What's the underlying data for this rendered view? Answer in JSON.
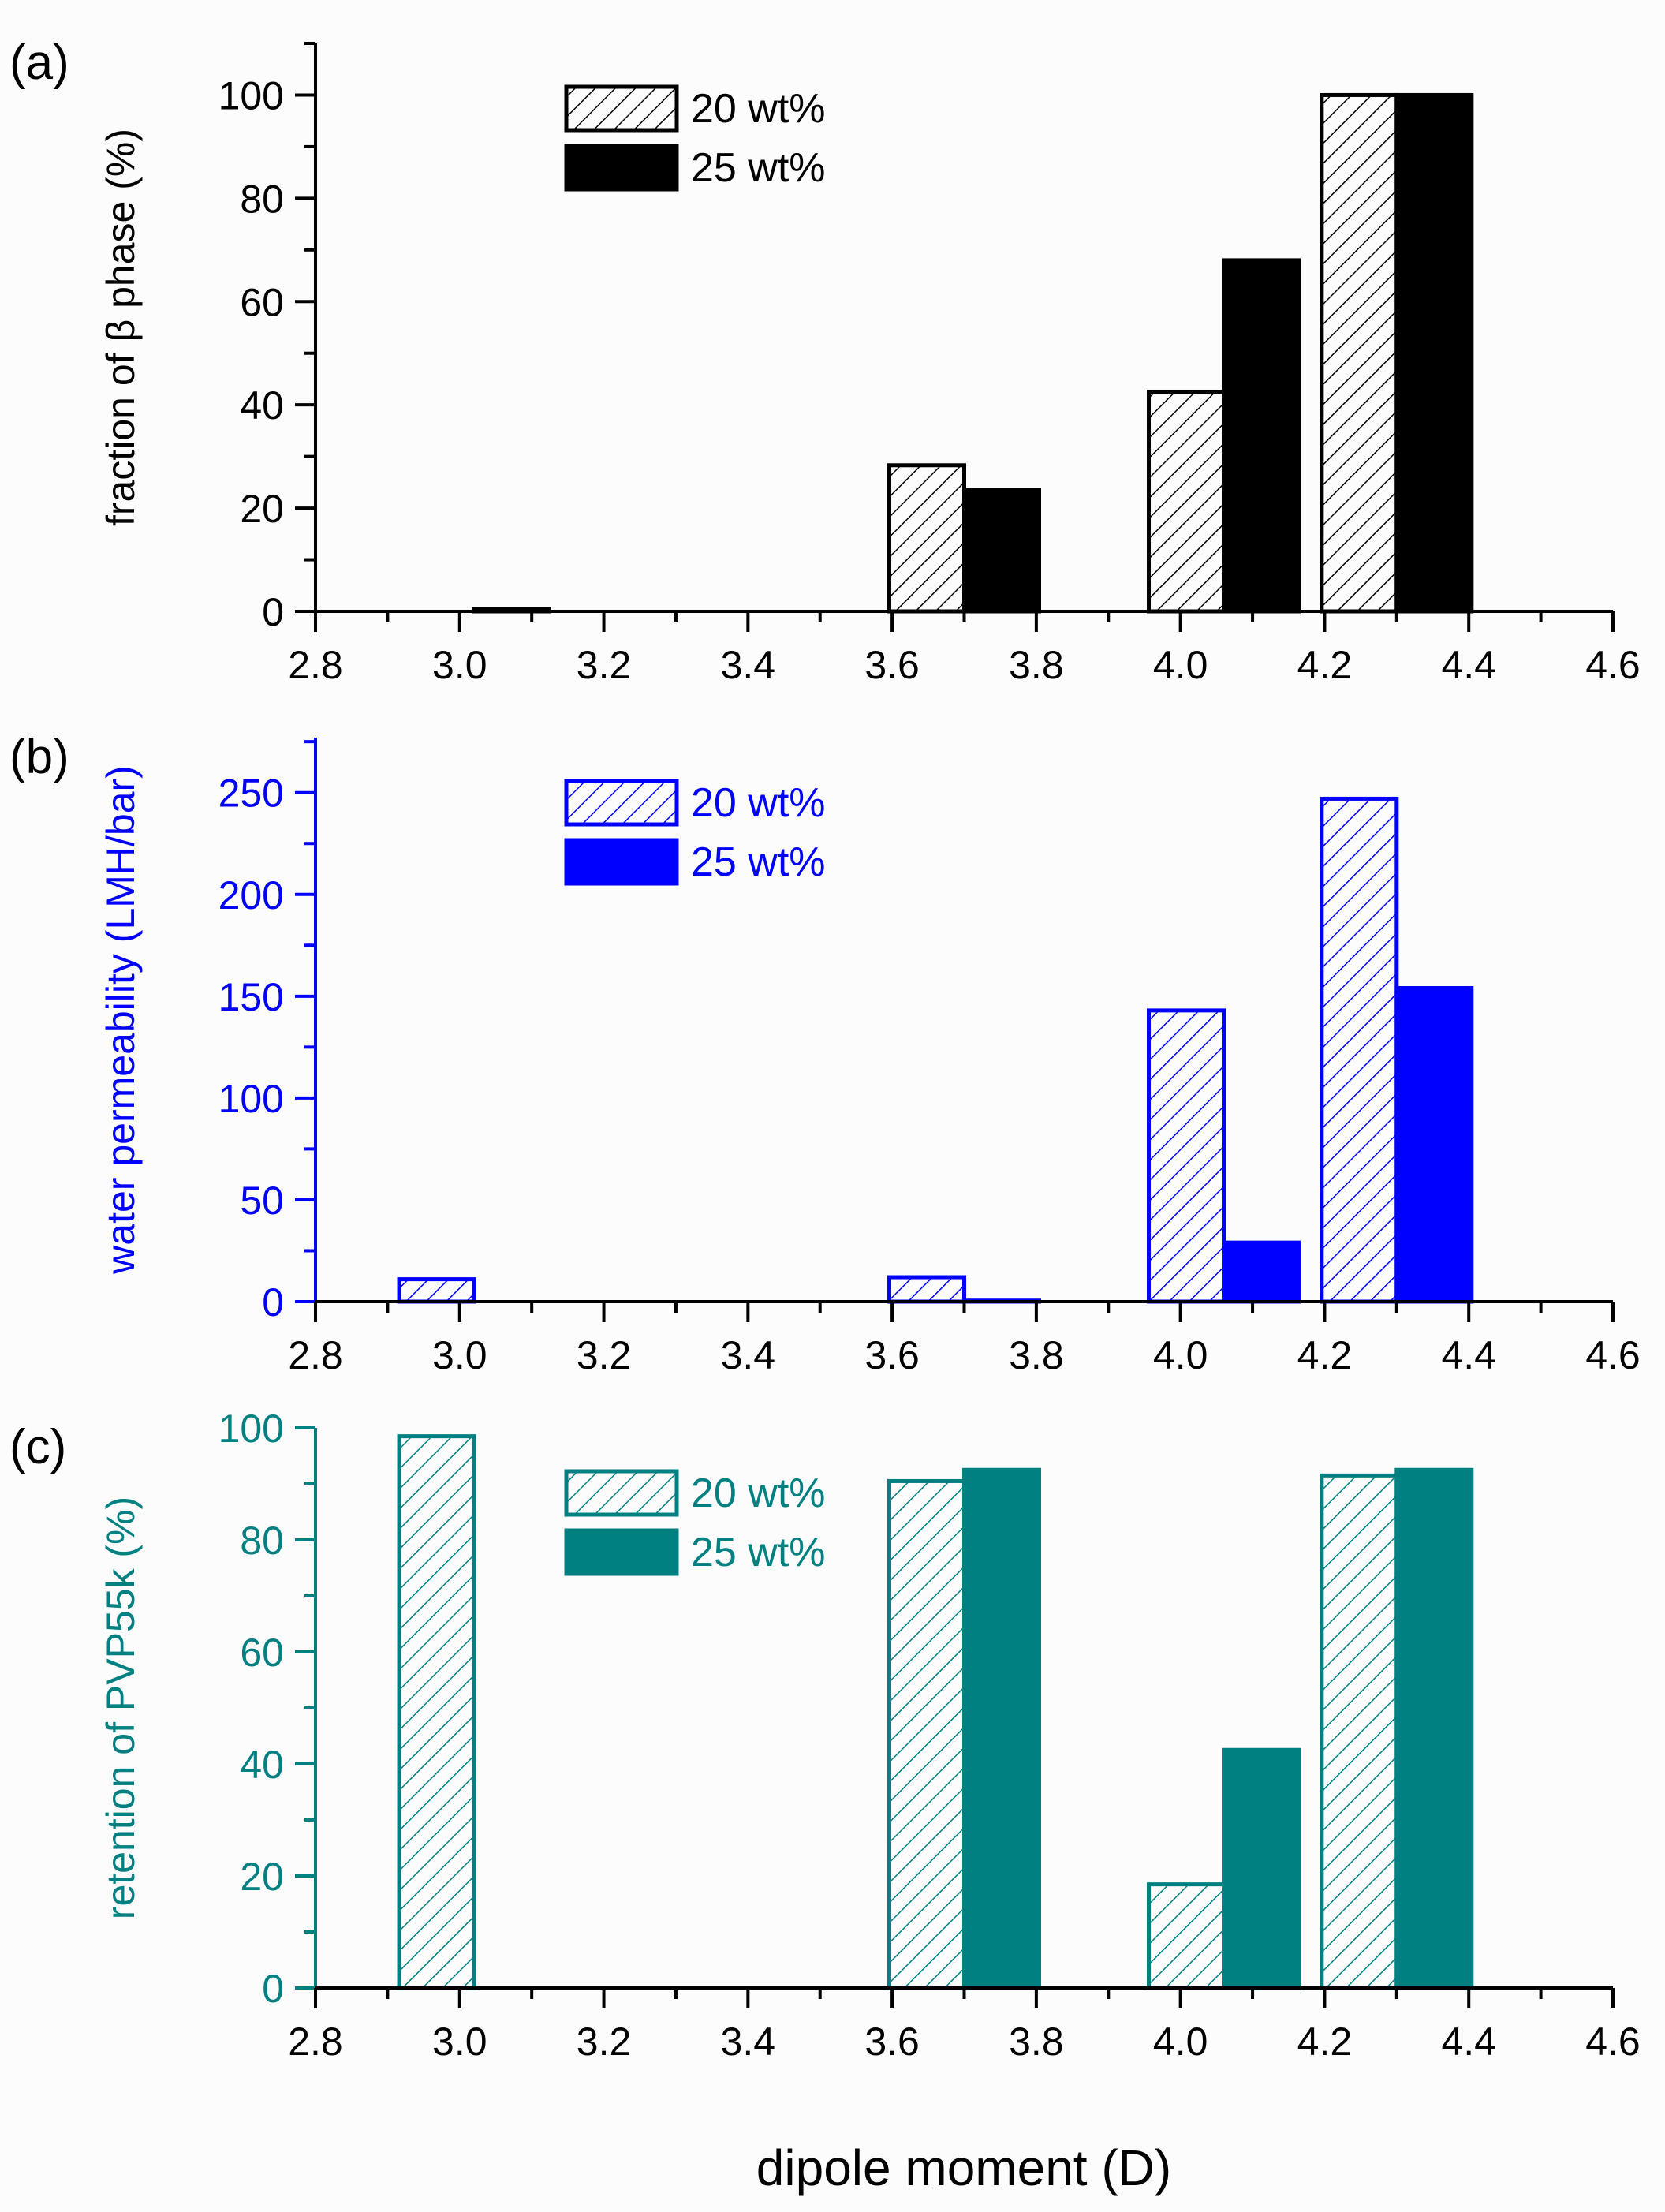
{
  "figure": {
    "xlabel": "dipole moment (D)"
  },
  "chart_data": [
    {
      "type": "bar",
      "panel_label": "(a)",
      "ylabel": "fraction of β phase (%)",
      "color": "#000000",
      "xlim": [
        2.8,
        4.6
      ],
      "xticks": [
        "2.8",
        "3.0",
        "3.2",
        "3.4",
        "3.6",
        "3.8",
        "4.0",
        "4.2",
        "4.4",
        "4.6"
      ],
      "ylim": [
        0,
        110
      ],
      "yticks": [
        0,
        20,
        40,
        60,
        80,
        100
      ],
      "x": [
        3.02,
        3.7,
        4.06,
        4.3
      ],
      "series": [
        {
          "name": "20 wt%",
          "style": "hatched",
          "values": [
            null,
            28.3,
            42.5,
            100
          ]
        },
        {
          "name": "25 wt%",
          "style": "solid",
          "values": [
            0.5,
            23.5,
            68,
            100
          ]
        }
      ],
      "legend_position": "top-center"
    },
    {
      "type": "bar",
      "panel_label": "(b)",
      "ylabel": "water permeability (LMH/bar)",
      "color": "#0000ff",
      "xlim": [
        2.8,
        4.6
      ],
      "xticks": [
        "2.8",
        "3.0",
        "3.2",
        "3.4",
        "3.6",
        "3.8",
        "4.0",
        "4.2",
        "4.4",
        "4.6"
      ],
      "ylim": [
        0,
        277
      ],
      "yticks": [
        0,
        50,
        100,
        150,
        200,
        250
      ],
      "x": [
        3.02,
        3.7,
        4.06,
        4.3
      ],
      "series": [
        {
          "name": "20 wt%",
          "style": "hatched",
          "values": [
            11,
            12,
            143,
            247
          ]
        },
        {
          "name": "25 wt%",
          "style": "solid",
          "values": [
            null,
            0.5,
            29,
            154
          ]
        }
      ],
      "legend_position": "top-center"
    },
    {
      "type": "bar",
      "panel_label": "(c)",
      "ylabel": "retention of PVP55k (%)",
      "color": "#008080",
      "xlim": [
        2.8,
        4.6
      ],
      "xticks": [
        "2.8",
        "3.0",
        "3.2",
        "3.4",
        "3.6",
        "3.8",
        "4.0",
        "4.2",
        "4.4",
        "4.6"
      ],
      "ylim": [
        0,
        100
      ],
      "yticks": [
        0,
        20,
        40,
        60,
        80,
        100
      ],
      "x": [
        3.02,
        3.7,
        4.06,
        4.3
      ],
      "series": [
        {
          "name": "20 wt%",
          "style": "hatched",
          "values": [
            98.5,
            90.5,
            18.5,
            91.5
          ]
        },
        {
          "name": "25 wt%",
          "style": "solid",
          "values": [
            null,
            92.5,
            42.5,
            92.5
          ]
        }
      ],
      "legend_position": "top-center"
    }
  ]
}
